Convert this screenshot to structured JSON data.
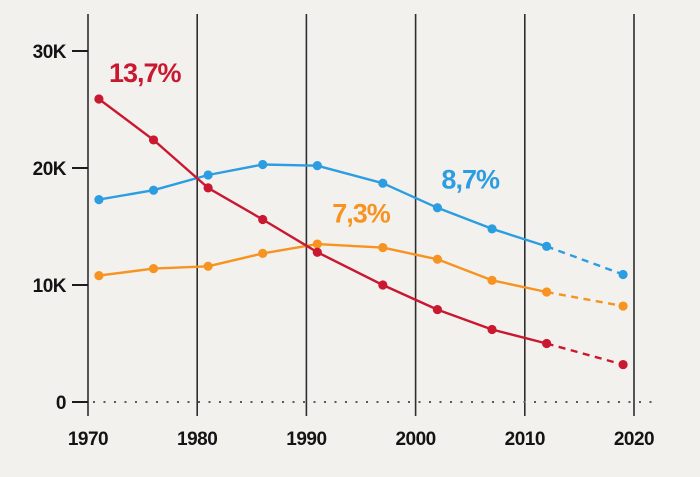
{
  "chart_data": {
    "type": "line",
    "title": "",
    "x_years": [
      1971,
      1976,
      1981,
      1986,
      1991,
      1997,
      2002,
      2007,
      2012,
      2019
    ],
    "x_axis_tick_labels": [
      "1970",
      "1980",
      "1990",
      "2000",
      "2010",
      "2020"
    ],
    "x_axis_tick_years": [
      1970,
      1980,
      1990,
      2000,
      2010,
      2020
    ],
    "y_axis_ticks": [
      {
        "value": 0,
        "label": "0"
      },
      {
        "value": 10,
        "label": "10K"
      },
      {
        "value": 20,
        "label": "20K"
      },
      {
        "value": 30,
        "label": "30K"
      }
    ],
    "y_unit": "thousands",
    "x_range": [
      1970,
      2020
    ],
    "y_range": [
      0,
      33
    ],
    "grid": "vertical-decade-lines",
    "legend_position": "inline-annotations",
    "dashed_note": "final segment (2012-2019) dashed on all series",
    "series": [
      {
        "id": "blue",
        "label": "8,7%",
        "color": "#2d9de2",
        "values": [
          17.3,
          18.1,
          19.4,
          20.3,
          20.2,
          18.7,
          16.6,
          14.8,
          13.3,
          10.9
        ],
        "dashed_from_year": 2012,
        "annotation": {
          "text": "8,7%",
          "year": 2005.0,
          "value": 19.0
        }
      },
      {
        "id": "orange",
        "label": "7,3%",
        "color": "#f79321",
        "values": [
          10.8,
          11.4,
          11.6,
          12.7,
          13.5,
          13.2,
          12.2,
          10.4,
          9.4,
          8.2
        ],
        "dashed_from_year": 2012,
        "annotation": {
          "text": "7,3%",
          "year": 1995.0,
          "value": 16.1
        }
      },
      {
        "id": "red",
        "label": "13,7%",
        "color": "#c9182f",
        "values": [
          25.9,
          22.4,
          18.3,
          15.6,
          12.8,
          10.0,
          7.9,
          6.2,
          5.0,
          3.2
        ],
        "dashed_from_year": 2012,
        "annotation": {
          "text": "13,7%",
          "year": 1975.2,
          "value": 28.1
        }
      }
    ],
    "colors": {
      "axis_text": "#141414",
      "gridline": "#2e2e2e",
      "tick": "#1c1c1c",
      "dotted_baseline": "#5a5a5a",
      "background": "#f2f1ee"
    }
  }
}
